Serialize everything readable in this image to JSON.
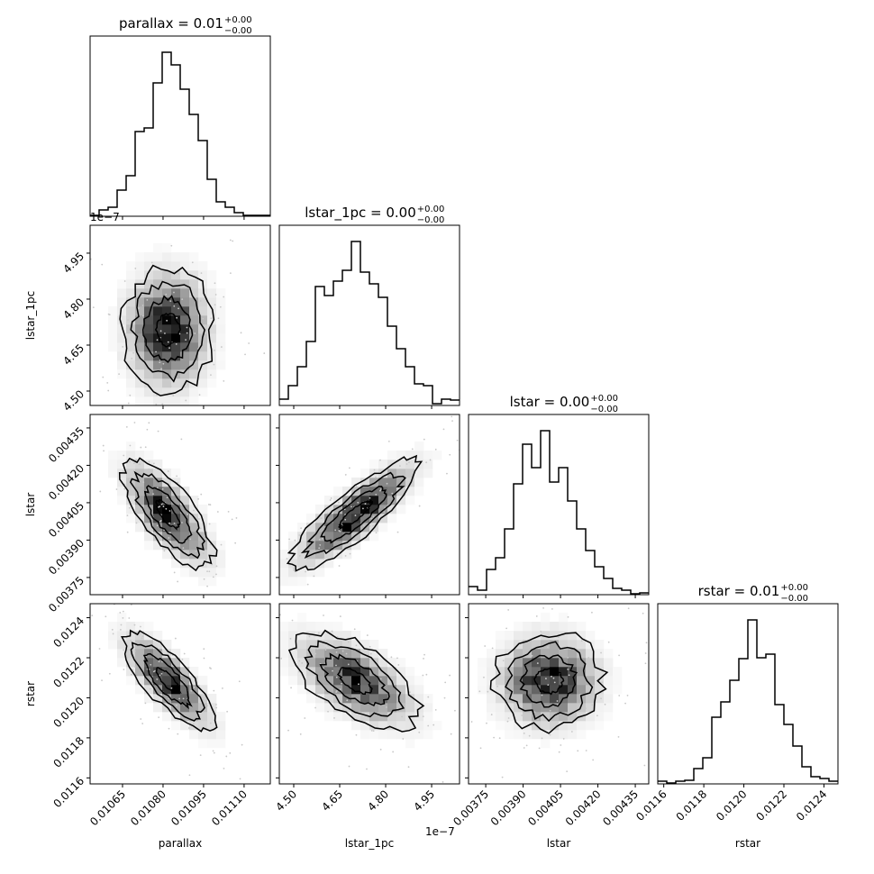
{
  "chart_data": {
    "type": "corner",
    "parameters": [
      {
        "name": "parallax",
        "label": "parallax",
        "title_main": "parallax = 0.01",
        "title_plus": "+0.00",
        "title_minus": "−0.00",
        "range": [
          0.01053,
          0.011197
        ],
        "ticks": [
          0.01065,
          0.0108,
          0.01095,
          0.0111
        ],
        "tick_labels": [
          "0.01065",
          "0.01080",
          "0.01095",
          "0.01110"
        ],
        "offset_text": "",
        "mean": 0.010818,
        "sigma": 8.35e-05,
        "hist_counts": [
          1,
          7,
          10,
          29,
          45,
          94,
          98,
          148,
          182,
          168,
          141,
          113,
          84,
          41,
          16,
          10,
          4,
          1,
          1,
          1
        ]
      },
      {
        "name": "lstar_1pc",
        "label": "lstar_1pc",
        "title_main": "lstar_1pc = 0.00",
        "title_plus": "+0.00",
        "title_minus": "−0.00",
        "range": [
          4.453,
          5.041
        ],
        "ticks": [
          4.5,
          4.65,
          4.8,
          4.95
        ],
        "tick_labels": [
          "4.50",
          "4.65",
          "4.80",
          "4.95"
        ],
        "offset_text": "1e−7",
        "mean": 4.7,
        "sigma": 0.103,
        "hist_counts": [
          7,
          22,
          43,
          71,
          132,
          122,
          138,
          150,
          182,
          148,
          135,
          120,
          88,
          63,
          43,
          24,
          22,
          2,
          7,
          6
        ]
      },
      {
        "name": "lstar",
        "label": "lstar",
        "title_main": "lstar = 0.00",
        "title_plus": "+0.00",
        "title_minus": "−0.00",
        "range": [
          0.003681,
          0.004404
        ],
        "ticks": [
          0.00375,
          0.0039,
          0.00405,
          0.0042,
          0.00435
        ],
        "tick_labels": [
          "0.00375",
          "0.00390",
          "0.00405",
          "0.00420",
          "0.00435"
        ],
        "offset_text": "",
        "mean": 0.004003,
        "sigma": 0.000108,
        "hist_counts": [
          9,
          5,
          28,
          41,
          73,
          123,
          167,
          141,
          182,
          125,
          141,
          104,
          73,
          49,
          31,
          18,
          7,
          5,
          1,
          2
        ]
      },
      {
        "name": "rstar",
        "label": "rstar",
        "title_main": "rstar = 0.01",
        "title_plus": "+0.00",
        "title_minus": "−0.00",
        "range": [
          0.01157,
          0.01247
        ],
        "ticks": [
          0.0116,
          0.0118,
          0.012,
          0.0122,
          0.0124
        ],
        "tick_labels": [
          "0.0116",
          "0.0118",
          "0.0120",
          "0.0122",
          "0.0124"
        ],
        "offset_text": "",
        "mean": 0.012085,
        "sigma": 0.000122,
        "hist_counts": [
          3,
          1,
          3,
          4,
          17,
          29,
          74,
          91,
          115,
          139,
          182,
          140,
          144,
          88,
          66,
          42,
          19,
          8,
          6,
          3
        ]
      }
    ],
    "correlations": [
      {
        "x": "parallax",
        "y": "lstar_1pc",
        "rho": 0.0
      },
      {
        "x": "parallax",
        "y": "lstar",
        "rho": -0.72
      },
      {
        "x": "lstar_1pc",
        "y": "lstar",
        "rho": 0.85
      },
      {
        "x": "parallax",
        "y": "rstar",
        "rho": -0.78
      },
      {
        "x": "lstar_1pc",
        "y": "rstar",
        "rho": -0.6
      },
      {
        "x": "lstar",
        "y": "rstar",
        "rho": 0.0
      }
    ],
    "contour_levels_sigma": [
      0.5,
      1.0,
      1.5,
      2.0
    ],
    "hist_bins": 20,
    "colors": {
      "line": "#000000",
      "density_max": "#000000",
      "background": "#ffffff",
      "points": "#c8c8c8"
    }
  }
}
